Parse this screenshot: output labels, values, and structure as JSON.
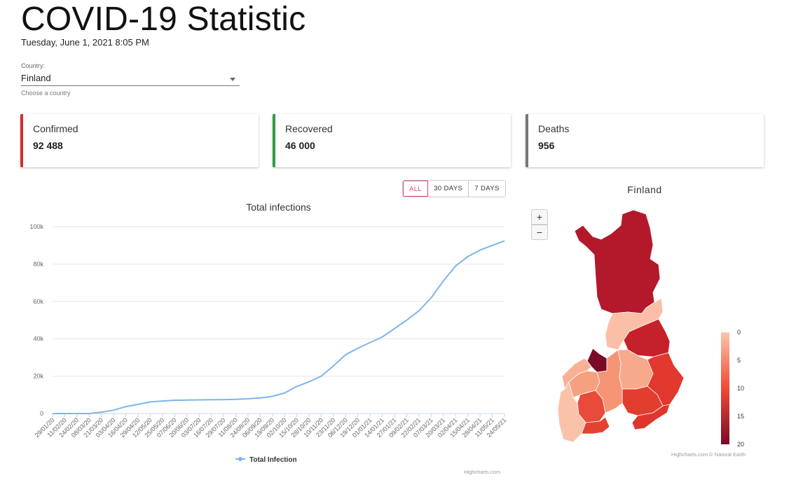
{
  "header": {
    "title": "COVID-19 Statistic",
    "date": "Tuesday, June 1, 2021 8:05 PM"
  },
  "country": {
    "label": "Country:",
    "value": "Finland",
    "hint": "Choose a country"
  },
  "cards": {
    "confirmed": {
      "label": "Confirmed",
      "value": "92 488",
      "color": "#d32f2f"
    },
    "recovered": {
      "label": "Recovered",
      "value": "46 000",
      "color": "#2ea043"
    },
    "deaths": {
      "label": "Deaths",
      "value": "956",
      "color": "#777777"
    }
  },
  "range_buttons": {
    "all": "ALL",
    "d30": "30 DAYS",
    "d7": "7 DAYS",
    "active": "ALL"
  },
  "chart_data": [
    {
      "type": "line",
      "title": "Total infections",
      "xlabel": "",
      "ylabel": "",
      "ylim": [
        0,
        100000
      ],
      "yticks": [
        0,
        20000,
        40000,
        60000,
        80000,
        100000
      ],
      "ytick_labels": [
        "0",
        "20k",
        "40k",
        "60k",
        "80k",
        "100k"
      ],
      "x": [
        "29/01/20",
        "11/02/20",
        "24/02/20",
        "08/03/20",
        "21/03/20",
        "03/04/20",
        "16/04/20",
        "29/04/20",
        "12/05/20",
        "25/05/20",
        "07/06/20",
        "20/06/20",
        "03/07/20",
        "16/07/20",
        "29/07/20",
        "11/08/20",
        "24/08/20",
        "06/09/20",
        "19/09/20",
        "02/10/20",
        "15/10/20",
        "28/10/20",
        "10/11/20",
        "23/11/20",
        "06/12/20",
        "19/12/20",
        "01/01/21",
        "14/01/21",
        "27/01/21",
        "09/02/21",
        "22/02/21",
        "07/03/21",
        "20/03/21",
        "02/04/21",
        "15/04/21",
        "28/04/21",
        "11/05/21",
        "24/05/21"
      ],
      "series": [
        {
          "name": "Total Infection",
          "color": "#7cb5ec",
          "values": [
            1,
            1,
            1,
            5,
            700,
            1800,
            3700,
            4900,
            6200,
            6700,
            7100,
            7200,
            7300,
            7400,
            7450,
            7600,
            7900,
            8300,
            9200,
            11000,
            14500,
            17000,
            20000,
            25500,
            31500,
            35000,
            38000,
            41000,
            45500,
            50000,
            55000,
            62000,
            71000,
            79000,
            84000,
            87500,
            90000,
            92400
          ]
        }
      ],
      "legend": "bottom-center",
      "credits": "Highcharts.com",
      "grid": true
    },
    {
      "type": "map",
      "title": "Finland",
      "colorscale": {
        "min": 0,
        "max": 20,
        "labels": [
          "0",
          "5",
          "10",
          "15",
          "20"
        ],
        "low_color": "#fcc5ad",
        "high_color": "#7a0a28"
      },
      "regions": [
        {
          "value": 17,
          "color": "#b3192b"
        },
        {
          "value": 2,
          "color": "#fbbea6"
        },
        {
          "value": 15,
          "color": "#c4212a"
        },
        {
          "value": 20,
          "color": "#7a0a28"
        },
        {
          "value": 3,
          "color": "#f9b196"
        },
        {
          "value": 5,
          "color": "#f5a180"
        },
        {
          "value": 4,
          "color": "#f6a98b"
        },
        {
          "value": 12,
          "color": "#e2382d"
        },
        {
          "value": 11,
          "color": "#e33d30"
        },
        {
          "value": 10,
          "color": "#e94b3a"
        },
        {
          "value": 6,
          "color": "#f59575"
        },
        {
          "value": 12,
          "color": "#e0352e"
        },
        {
          "value": 2,
          "color": "#fbc2aa"
        },
        {
          "value": 11,
          "color": "#e44331"
        }
      ],
      "credits": "Highcharts.com © Natural Earth"
    }
  ]
}
